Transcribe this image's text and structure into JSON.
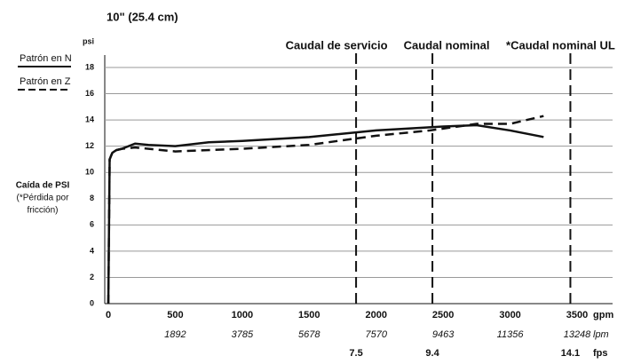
{
  "chart_data": {
    "type": "line",
    "title": "10\" (25.4 cm)",
    "y_unit": "psi",
    "y_axis_label": [
      "Caída de PSI",
      "(*Pérdida por",
      "fricción)"
    ],
    "x_unit": "gpm",
    "xlim": [
      0,
      3500
    ],
    "xticks": [
      0,
      500,
      1000,
      1500,
      2000,
      2500,
      3000,
      3500
    ],
    "ylim": [
      0,
      18
    ],
    "yticks": [
      0,
      2,
      4,
      6,
      8,
      10,
      12,
      14,
      16,
      18
    ],
    "grid": true,
    "legend": "top-left",
    "lpm": {
      "unit": "lpm",
      "x": [
        500,
        1000,
        1500,
        2000,
        2500,
        3000,
        3500
      ],
      "labels": [
        1892,
        3785,
        5678,
        7570,
        9463,
        11356,
        13248
      ]
    },
    "fps_unit": "fps",
    "reference_lines": [
      {
        "label": "Caudal de servicio",
        "x": 1850,
        "fps": 7.5
      },
      {
        "label": "Caudal nominal",
        "x": 2420,
        "fps": 9.4
      },
      {
        "label": "*Caudal nominal UL",
        "x": 3450,
        "fps": 14.1
      }
    ],
    "series": [
      {
        "name": "Patrón en N",
        "color": "#111111",
        "line_style": "solid",
        "x": [
          0,
          10,
          30,
          60,
          100,
          200,
          300,
          500,
          750,
          1000,
          1500,
          2000,
          2500,
          2750,
          3000,
          3250
        ],
        "values": [
          0,
          11,
          11.5,
          11.7,
          11.8,
          12.2,
          12.1,
          12.0,
          12.3,
          12.4,
          12.7,
          13.2,
          13.5,
          13.6,
          13.2,
          12.7
        ]
      },
      {
        "name": "Patrón en Z",
        "color": "#111111",
        "line_style": "dashed",
        "x": [
          0,
          10,
          30,
          60,
          100,
          200,
          500,
          1000,
          1500,
          2000,
          2400,
          2750,
          3000,
          3250
        ],
        "values": [
          0,
          11,
          11.5,
          11.7,
          11.8,
          11.9,
          11.6,
          11.8,
          12.1,
          12.8,
          13.2,
          13.7,
          13.7,
          14.3
        ]
      }
    ]
  }
}
